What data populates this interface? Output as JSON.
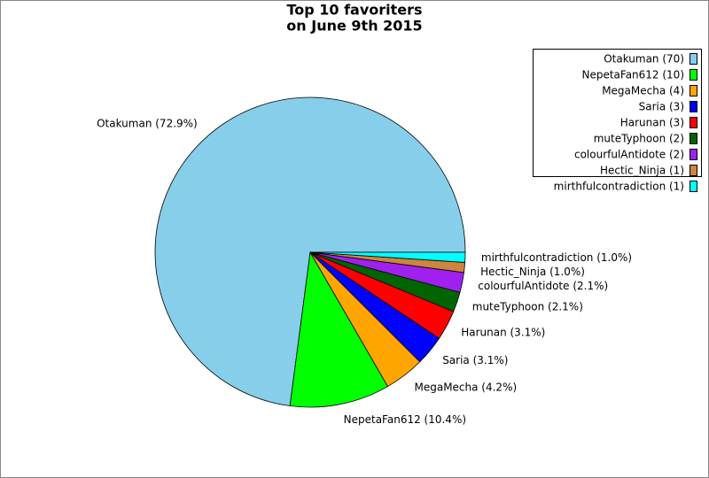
{
  "chart_data": {
    "type": "pie",
    "title": "Top 10 favoriters",
    "subtitle": "on June 9th 2015",
    "values": [
      70,
      10,
      4,
      3,
      3,
      2,
      2,
      1,
      1
    ],
    "legend_labels": [
      "Otakuman (70)",
      "NepetaFan612 (10)",
      "MegaMecha (4)",
      "Saria (3)",
      "Harunan (3)",
      "muteTyphoon (2)",
      "colourfulAntidote (2)",
      "Hectic_Ninja (1)",
      "mirthfulcontradiction (1)"
    ],
    "slice_labels": [
      "Otakuman (72.9%)",
      "NepetaFan612 (10.4%)",
      "MegaMecha (4.2%)",
      "Saria (3.1%)",
      "Harunan (3.1%)",
      "muteTyphoon (2.1%)",
      "colourfulAntidote (2.1%)",
      "Hectic_Ninja (1.0%)",
      "mirthfulcontradiction (1.0%)"
    ],
    "colors": [
      "#87ceeb",
      "#00ff00",
      "#ffa500",
      "#0000ff",
      "#ff0000",
      "#006400",
      "#a020f0",
      "#cd853f",
      "#00ffff"
    ]
  }
}
